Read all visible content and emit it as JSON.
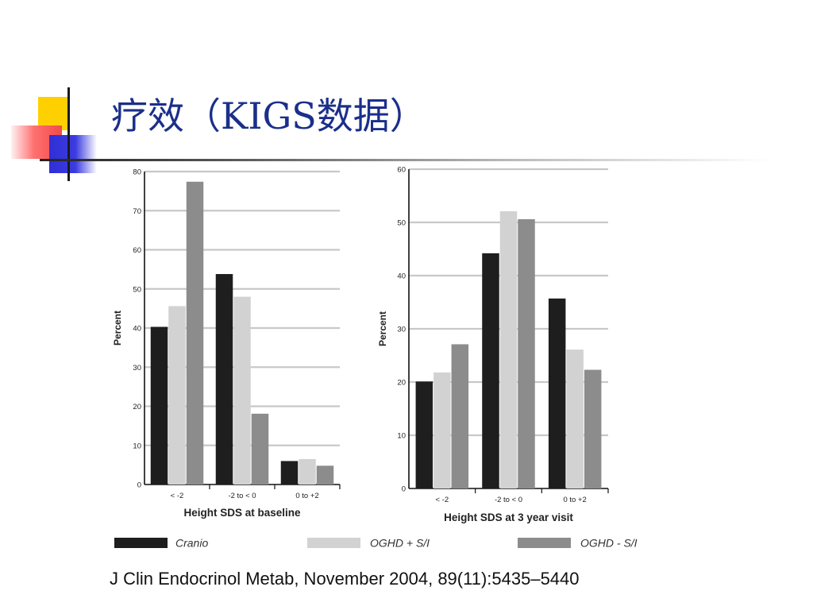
{
  "slide": {
    "title": "疗效（KIGS数据）",
    "citation": "J Clin Endocrinol Metab, November 2004, 89(11):5435–5440"
  },
  "colors": {
    "title": "#1b2f8a",
    "cranio": "#1e1e1e",
    "oghd_si_plus": "#d2d2d2",
    "oghd_si_minus": "#8c8c8c",
    "grid": "#c8c8c8"
  },
  "legend": [
    {
      "name": "Cranio",
      "color": "#1e1e1e"
    },
    {
      "name": "OGHD + S/I",
      "color": "#d2d2d2"
    },
    {
      "name": "OGHD - S/I",
      "color": "#8c8c8c"
    }
  ],
  "chart_data": [
    {
      "type": "bar",
      "xlabel": "Height SDS at baseline",
      "ylabel": "Percent",
      "categories": [
        "< -2",
        "-2 to < 0",
        "0 to +2"
      ],
      "ylim": [
        0,
        80
      ],
      "yticks": [
        0,
        10,
        20,
        30,
        40,
        50,
        60,
        70,
        80
      ],
      "grid": true,
      "series": [
        {
          "name": "Cranio",
          "values": [
            40.3,
            53.8,
            6.0
          ]
        },
        {
          "name": "OGHD + S/I",
          "values": [
            45.6,
            48.0,
            6.5
          ]
        },
        {
          "name": "OGHD - S/I",
          "values": [
            77.4,
            18.1,
            4.8
          ]
        }
      ]
    },
    {
      "type": "bar",
      "xlabel": "Height SDS at 3 year visit",
      "ylabel": "Percent",
      "categories": [
        "< -2",
        "-2 to < 0",
        "0 to +2"
      ],
      "ylim": [
        0,
        60
      ],
      "yticks": [
        0,
        10,
        20,
        30,
        40,
        50,
        60
      ],
      "grid": true,
      "series": [
        {
          "name": "Cranio",
          "values": [
            20.1,
            44.2,
            35.7
          ]
        },
        {
          "name": "OGHD + S/I",
          "values": [
            21.8,
            52.1,
            26.1
          ]
        },
        {
          "name": "OGHD - S/I",
          "values": [
            27.1,
            50.6,
            22.3
          ]
        }
      ]
    }
  ]
}
